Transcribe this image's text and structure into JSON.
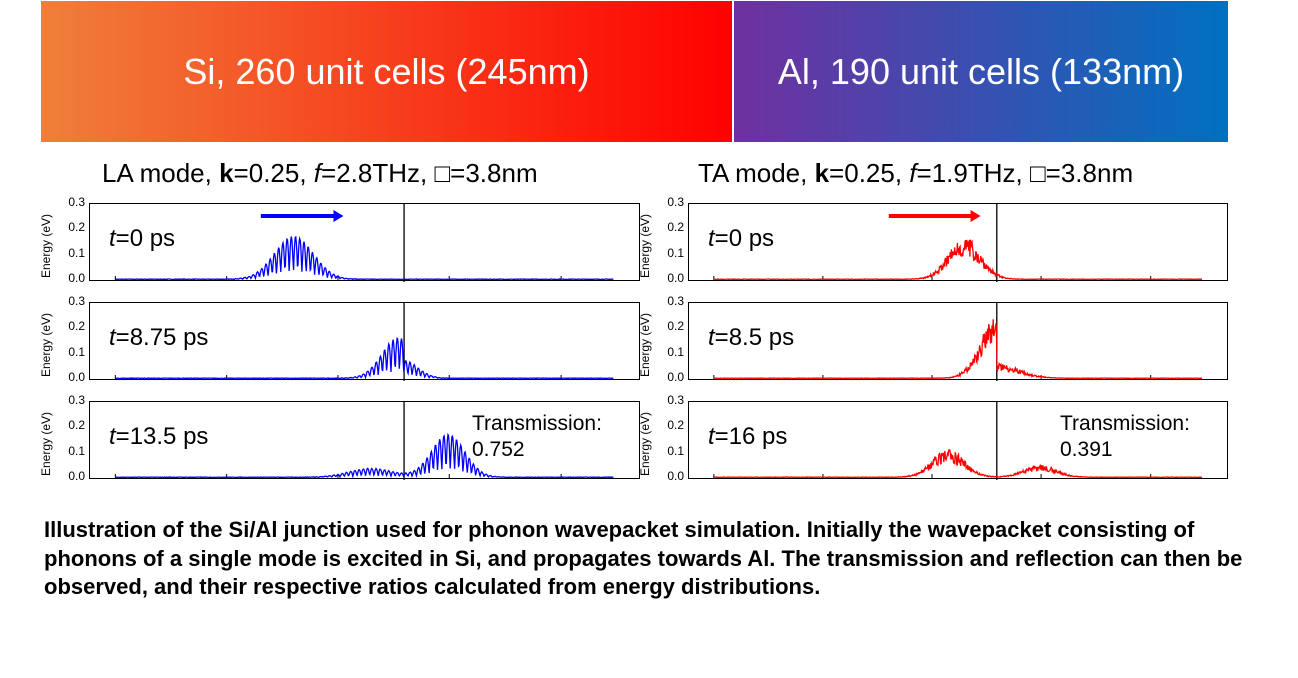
{
  "banner": {
    "si": "Si, 260 unit cells (245nm)",
    "al": "Al, 190 unit cells (133nm)"
  },
  "colors": {
    "si_from": "#ef7f3a",
    "si_to": "#ff0000",
    "al_from": "#7030a0",
    "al_to": "#0070c0",
    "la": "#0000ff",
    "ta": "#ff0000"
  },
  "columns": [
    {
      "title_pre": "LA mode, ",
      "title_k": "k",
      "title_mid": "=0.25, ",
      "title_f": "f",
      "title_post": "=2.8THz, □=3.8nm"
    },
    {
      "title_pre": "TA mode, ",
      "title_k": "k",
      "title_mid": "=0.25, ",
      "title_f": "f",
      "title_post": "=1.9THz, □=3.8nm"
    }
  ],
  "chart_data": [
    {
      "type": "line",
      "mode": "LA",
      "color": "#0000ff",
      "ylabel": "Energy (eV)",
      "ylim": [
        0,
        0.3
      ],
      "yticks": [
        "0.0",
        "0.1",
        "0.2",
        "0.3"
      ],
      "xlim": [
        0,
        100
      ],
      "junction": 57,
      "panels": [
        {
          "t_var": "t",
          "t_val": "=0 ps",
          "arrow": [
            31,
            46
          ],
          "packets": [
            {
              "center": 37,
              "width": 3.5,
              "amp": 0.17,
              "side": "both"
            }
          ]
        },
        {
          "t_var": "t",
          "t_val": "=8.75 ps",
          "packets": [
            {
              "center": 56,
              "width": 3,
              "amp": 0.16,
              "side": "left"
            },
            {
              "center": 57,
              "width": 2.5,
              "amp": 0.07,
              "side": "right"
            }
          ]
        },
        {
          "t_var": "t",
          "t_val": "=13.5 ps",
          "transmission_label": "Transmission:",
          "transmission": "0.752",
          "packets": [
            {
              "center": 51,
              "width": 4,
              "amp": 0.035,
              "side": "both"
            },
            {
              "center": 65,
              "width": 3,
              "amp": 0.17,
              "side": "both"
            }
          ]
        }
      ]
    },
    {
      "type": "line",
      "mode": "TA",
      "color": "#ff0000",
      "ylabel": "Energy (eV)",
      "ylim": [
        0,
        0.3
      ],
      "yticks": [
        "0.0",
        "0.1",
        "0.2",
        "0.3"
      ],
      "xlim": [
        0,
        100
      ],
      "junction": 57,
      "panels": [
        {
          "t_var": "t",
          "t_val": "=0 ps",
          "arrow": [
            37,
            54
          ],
          "packets": [
            {
              "center": 51,
              "width": 3,
              "amp": 0.17,
              "side": "both"
            }
          ]
        },
        {
          "t_var": "t",
          "t_val": "=8.5 ps",
          "packets": [
            {
              "center": 57,
              "width": 3,
              "amp": 0.25,
              "side": "left"
            },
            {
              "center": 57,
              "width": 4,
              "amp": 0.06,
              "side": "right"
            }
          ]
        },
        {
          "t_var": "t",
          "t_val": "=16 ps",
          "transmission_label": "Transmission:",
          "transmission": "0.391",
          "packets": [
            {
              "center": 48,
              "width": 3,
              "amp": 0.11,
              "side": "both"
            },
            {
              "center": 65,
              "width": 3,
              "amp": 0.05,
              "side": "both"
            }
          ]
        }
      ]
    }
  ],
  "caption": "Illustration of the Si/Al junction used for phonon wavepacket simulation. Initially the wavepacket consisting of phonons of a single mode is excited in Si, and propagates towards Al. The transmission and reflection can then be observed, and their respective ratios calculated from energy distributions."
}
